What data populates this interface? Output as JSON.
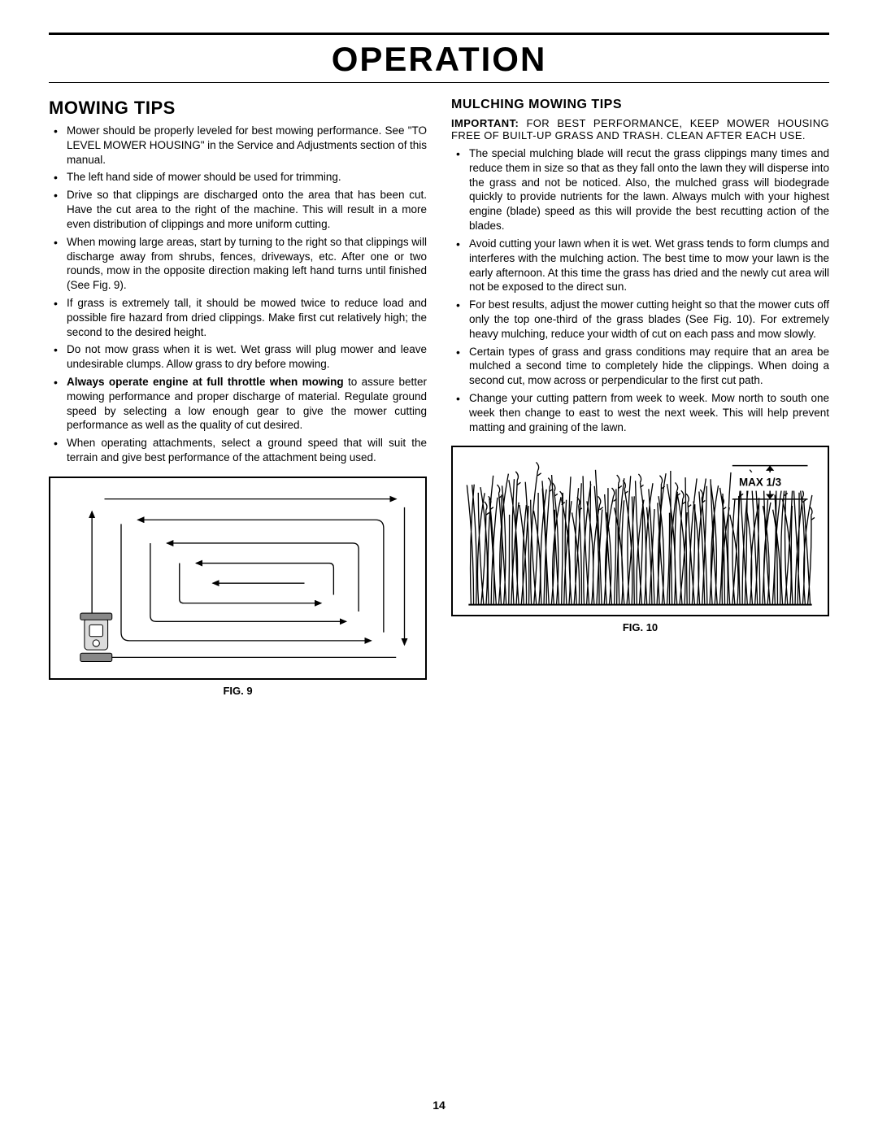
{
  "page": {
    "title": "OPERATION",
    "number": "14"
  },
  "left": {
    "heading": "MOWING TIPS",
    "bullets": [
      {
        "bold": "",
        "text": "Mower should be properly leveled for best mowing performance. See \"TO LEVEL MOWER HOUSING\" in the Service and Adjustments section of this manual."
      },
      {
        "bold": "",
        "text": "The left hand side of mower should be used for trimming."
      },
      {
        "bold": "",
        "text": "Drive so that clippings are discharged onto the area that has been cut.  Have the cut area to the right of the machine.  This will result in a more even distribution of clippings and more uniform cutting."
      },
      {
        "bold": "",
        "text": "When mowing large areas, start by turning to the right so that clippings will discharge away from shrubs, fences, driveways, etc.  After one or two rounds, mow in the opposite direction making left hand turns until finished (See Fig. 9)."
      },
      {
        "bold": "",
        "text": "If  grass is extremely tall, it should be mowed twice to reduce load and possible fire hazard from dried clippings.  Make first cut relatively high; the second to the desired height."
      },
      {
        "bold": "",
        "text": "Do not mow grass when it is wet.  Wet grass will plug mower and leave undesirable clumps.  Allow grass to dry before mowing."
      },
      {
        "bold": "Always operate engine at full throttle when mowing",
        "text": " to assure better mowing performance and proper discharge of material.  Regulate ground speed by selecting a low enough gear to give the mower cutting performance as well as the quality of cut desired."
      },
      {
        "bold": "",
        "text": "When operating attachments, select a ground speed that will suit the terrain and give best performance of the attachment being used."
      }
    ],
    "fig_caption": "FIG. 9"
  },
  "right": {
    "heading": "MULCHING MOWING TIPS",
    "important_label": "IMPORTANT:",
    "important_text": " FOR BEST PERFORMANCE, KEEP MOWER HOUSING FREE OF BUILT-UP GRASS AND TRASH. CLEAN AFTER EACH USE.",
    "bullets": [
      {
        "text": "The special mulching blade will recut the grass clippings many times and reduce them in size so that as they fall onto the lawn they will disperse into the grass and not be noticed.  Also, the mulched grass will biodegrade quickly to provide nutrients for the lawn.  Always mulch with your highest engine (blade) speed as this will provide the best recutting action of the blades."
      },
      {
        "text": "Avoid cutting your lawn when it is wet.  Wet grass tends to form clumps and interferes with the mulching action.  The best time to mow your lawn is the early afternoon.  At this time the grass has dried and the newly cut area will not be exposed to the direct sun."
      },
      {
        "text": "For best results, adjust the mower cutting height so that the mower cuts off only the top one-third of the grass blades (See Fig. 10). For extremely heavy mulching, reduce your width of cut on each pass and mow slowly."
      },
      {
        "text": "Certain types of grass and grass conditions may require that an area be mulched a second time to completely hide the clippings.  When doing a second cut, mow across or perpendicular to the first cut path."
      },
      {
        "text": "Change your cutting pattern from week to week.  Mow north to south one week then change to east to west the next week.  This will help prevent matting and graining of the lawn."
      }
    ],
    "fig_label": "MAX 1/3",
    "fig_caption": "FIG. 10"
  },
  "style": {
    "page_title_fontsize": 42,
    "section_hd_fontsize": 22,
    "body_fontsize": 13.5,
    "text_color": "#000000",
    "bg_color": "#ffffff"
  }
}
